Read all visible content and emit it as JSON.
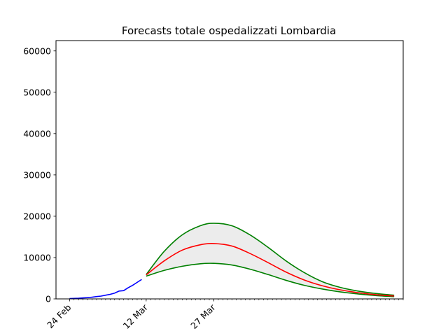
{
  "chart_data": {
    "type": "line",
    "title": "Forecasts totale ospedalizzati Lombardia",
    "xlabel": "",
    "ylabel": "",
    "ylim": [
      0,
      62500
    ],
    "y_ticks": [
      0,
      10000,
      20000,
      30000,
      40000,
      50000,
      60000
    ],
    "x_axis": {
      "start_date": "2020-02-21",
      "end_date": "2020-05-08",
      "labeled_ticks": [
        {
          "date": "2020-02-24",
          "label": "24 Feb"
        },
        {
          "date": "2020-03-12",
          "label": "12 Mar"
        },
        {
          "date": "2020-03-27",
          "label": "27 Mar"
        }
      ],
      "minor_ticks": "daily"
    },
    "grid": false,
    "legend": "none",
    "colors": {
      "observed": "#0000ff",
      "forecast_central": "#ff0000",
      "forecast_bounds": "#008000",
      "band_fill": "#ececec"
    },
    "observed": {
      "x": [
        "2020-02-24",
        "2020-02-25",
        "2020-02-26",
        "2020-02-27",
        "2020-02-28",
        "2020-02-29",
        "2020-03-01",
        "2020-03-02",
        "2020-03-03",
        "2020-03-04",
        "2020-03-05",
        "2020-03-06",
        "2020-03-07",
        "2020-03-08",
        "2020-03-09",
        "2020-03-10",
        "2020-03-11"
      ],
      "y": [
        76,
        110,
        160,
        240,
        310,
        410,
        560,
        680,
        900,
        1100,
        1400,
        1900,
        2000,
        2700,
        3300,
        4000,
        4700
      ]
    },
    "forecast_central": {
      "x": [
        "2020-03-12",
        "2020-03-16",
        "2020-03-20",
        "2020-03-24",
        "2020-03-27",
        "2020-03-31",
        "2020-04-04",
        "2020-04-08",
        "2020-04-12",
        "2020-04-16",
        "2020-04-20",
        "2020-04-24",
        "2020-04-28",
        "2020-05-02",
        "2020-05-06"
      ],
      "y": [
        5800,
        9200,
        11800,
        13100,
        13400,
        12800,
        11000,
        8800,
        6500,
        4600,
        3200,
        2200,
        1500,
        1000,
        700
      ]
    },
    "forecast_upper": {
      "x": [
        "2020-03-12",
        "2020-03-16",
        "2020-03-20",
        "2020-03-24",
        "2020-03-27",
        "2020-03-31",
        "2020-04-04",
        "2020-04-08",
        "2020-04-12",
        "2020-04-16",
        "2020-04-20",
        "2020-04-24",
        "2020-04-28",
        "2020-05-02",
        "2020-05-06"
      ],
      "y": [
        5900,
        11500,
        15500,
        17700,
        18300,
        17700,
        15500,
        12500,
        9200,
        6400,
        4200,
        2800,
        1900,
        1300,
        900
      ]
    },
    "forecast_lower": {
      "x": [
        "2020-03-12",
        "2020-03-16",
        "2020-03-20",
        "2020-03-24",
        "2020-03-27",
        "2020-03-31",
        "2020-04-04",
        "2020-04-08",
        "2020-04-12",
        "2020-04-16",
        "2020-04-20",
        "2020-04-24",
        "2020-04-28",
        "2020-05-02",
        "2020-05-06"
      ],
      "y": [
        5500,
        6900,
        7900,
        8500,
        8600,
        8200,
        7200,
        5900,
        4500,
        3300,
        2400,
        1700,
        1200,
        800,
        550
      ]
    }
  }
}
